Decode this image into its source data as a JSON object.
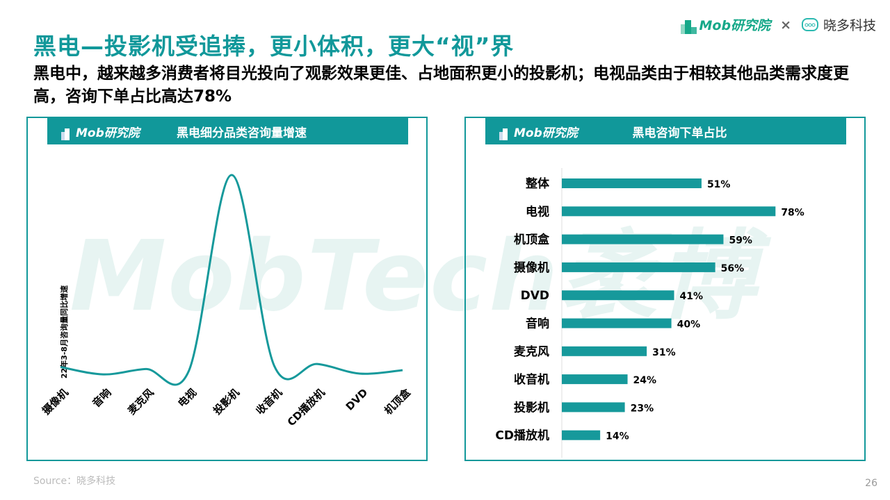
{
  "header": {
    "title": "黑电—投影机受追捧，更小体积，更大“视”界",
    "subtitle": "黑电中，越来越多消费者将目光投向了观影效果更佳、占地面积更小的投影机；电视品类由于相较其他品类需求度更高，咨询下单占比高达78%",
    "logo_mob": "Mob研究院",
    "logo_x": "×",
    "logo_partner": "晓多科技"
  },
  "watermark": "MobTech袤博",
  "colors": {
    "accent": "#11989a",
    "bar": "#16999b"
  },
  "chart_data": [
    {
      "type": "line",
      "title": "黑电细分品类咨询量增速",
      "panel_logo": "Mob研究院",
      "ylabel": "22年3-8月咨询量同比增速",
      "categories": [
        "摄像机",
        "音响",
        "麦克风",
        "电视",
        "投影机",
        "收音机",
        "CD播放机",
        "DVD",
        "机顶盒"
      ],
      "values": [
        4,
        0.3,
        3,
        2,
        100,
        4.5,
        5.5,
        0.7,
        2.4
      ],
      "note": "relative values, no y-axis ticks shown",
      "ylim": [
        0,
        100
      ]
    },
    {
      "type": "bar",
      "orientation": "horizontal",
      "title": "黑电咨询下单占比",
      "panel_logo": "Mob研究院",
      "categories": [
        "整体",
        "电视",
        "机顶盒",
        "摄像机",
        "DVD",
        "音响",
        "麦克风",
        "收音机",
        "投影机",
        "CD播放机"
      ],
      "values": [
        51,
        78,
        59,
        56,
        41,
        40,
        31,
        24,
        23,
        14
      ],
      "labels": [
        "51%",
        "78%",
        "59%",
        "56%",
        "41%",
        "40%",
        "31%",
        "24%",
        "23%",
        "14%"
      ],
      "xlim": [
        0,
        100
      ]
    }
  ],
  "footer": {
    "source": "Source：晓多科技",
    "page": "26"
  }
}
